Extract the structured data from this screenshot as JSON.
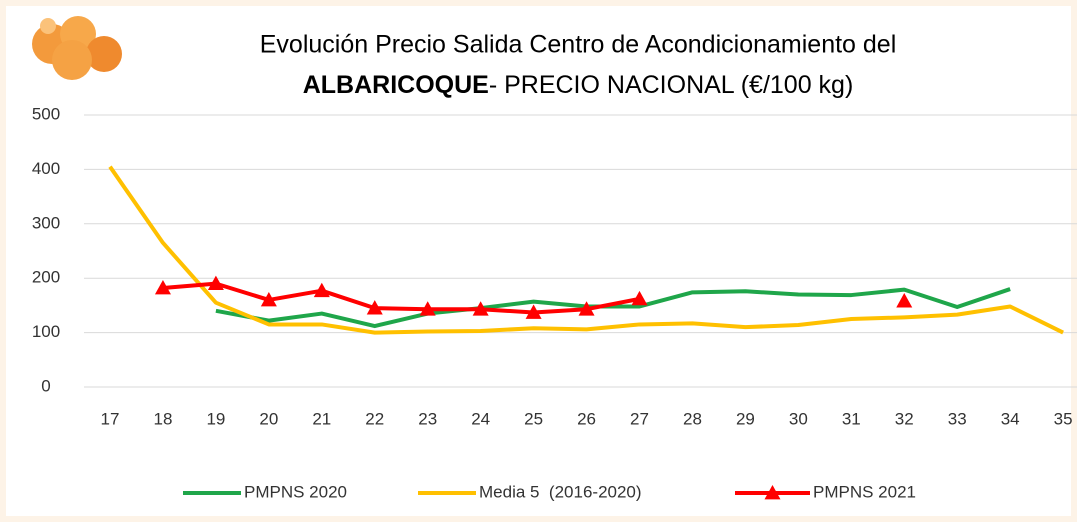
{
  "chart_data": {
    "type": "line",
    "title_line1": "Evolución Precio Salida Centro de Acondicionamiento del",
    "title_bold": "ALBARICOQUE",
    "title_rest": "- PRECIO NACIONAL (€/100 kg)",
    "categories": [
      "17",
      "18",
      "19",
      "20",
      "21",
      "22",
      "23",
      "24",
      "25",
      "26",
      "27",
      "28",
      "29",
      "30",
      "31",
      "32",
      "33",
      "34",
      "35"
    ],
    "series": [
      {
        "name": "PMPNS 2020",
        "color": "#1fa64a",
        "marker": "none",
        "values": [
          null,
          null,
          140,
          122,
          135,
          112,
          135,
          145,
          157,
          148,
          148,
          174,
          176,
          170,
          169,
          179,
          147,
          180,
          null
        ]
      },
      {
        "name": "Media 5  (2016-2020)",
        "color": "#ffc000",
        "marker": "none",
        "values": [
          405,
          265,
          155,
          115,
          115,
          100,
          102,
          103,
          108,
          106,
          115,
          117,
          110,
          114,
          125,
          128,
          133,
          148,
          100
        ]
      },
      {
        "name": "PMPNS 2021",
        "color": "#ff0000",
        "marker": "triangle",
        "values": [
          null,
          182,
          190,
          160,
          177,
          145,
          143,
          143,
          137,
          143,
          162,
          null,
          null,
          null,
          null,
          158,
          null,
          null,
          null
        ]
      }
    ],
    "ylim": [
      0,
      500
    ],
    "yticks": [
      0,
      100,
      200,
      300,
      400,
      500
    ],
    "grid": true,
    "legend": "bottom"
  }
}
